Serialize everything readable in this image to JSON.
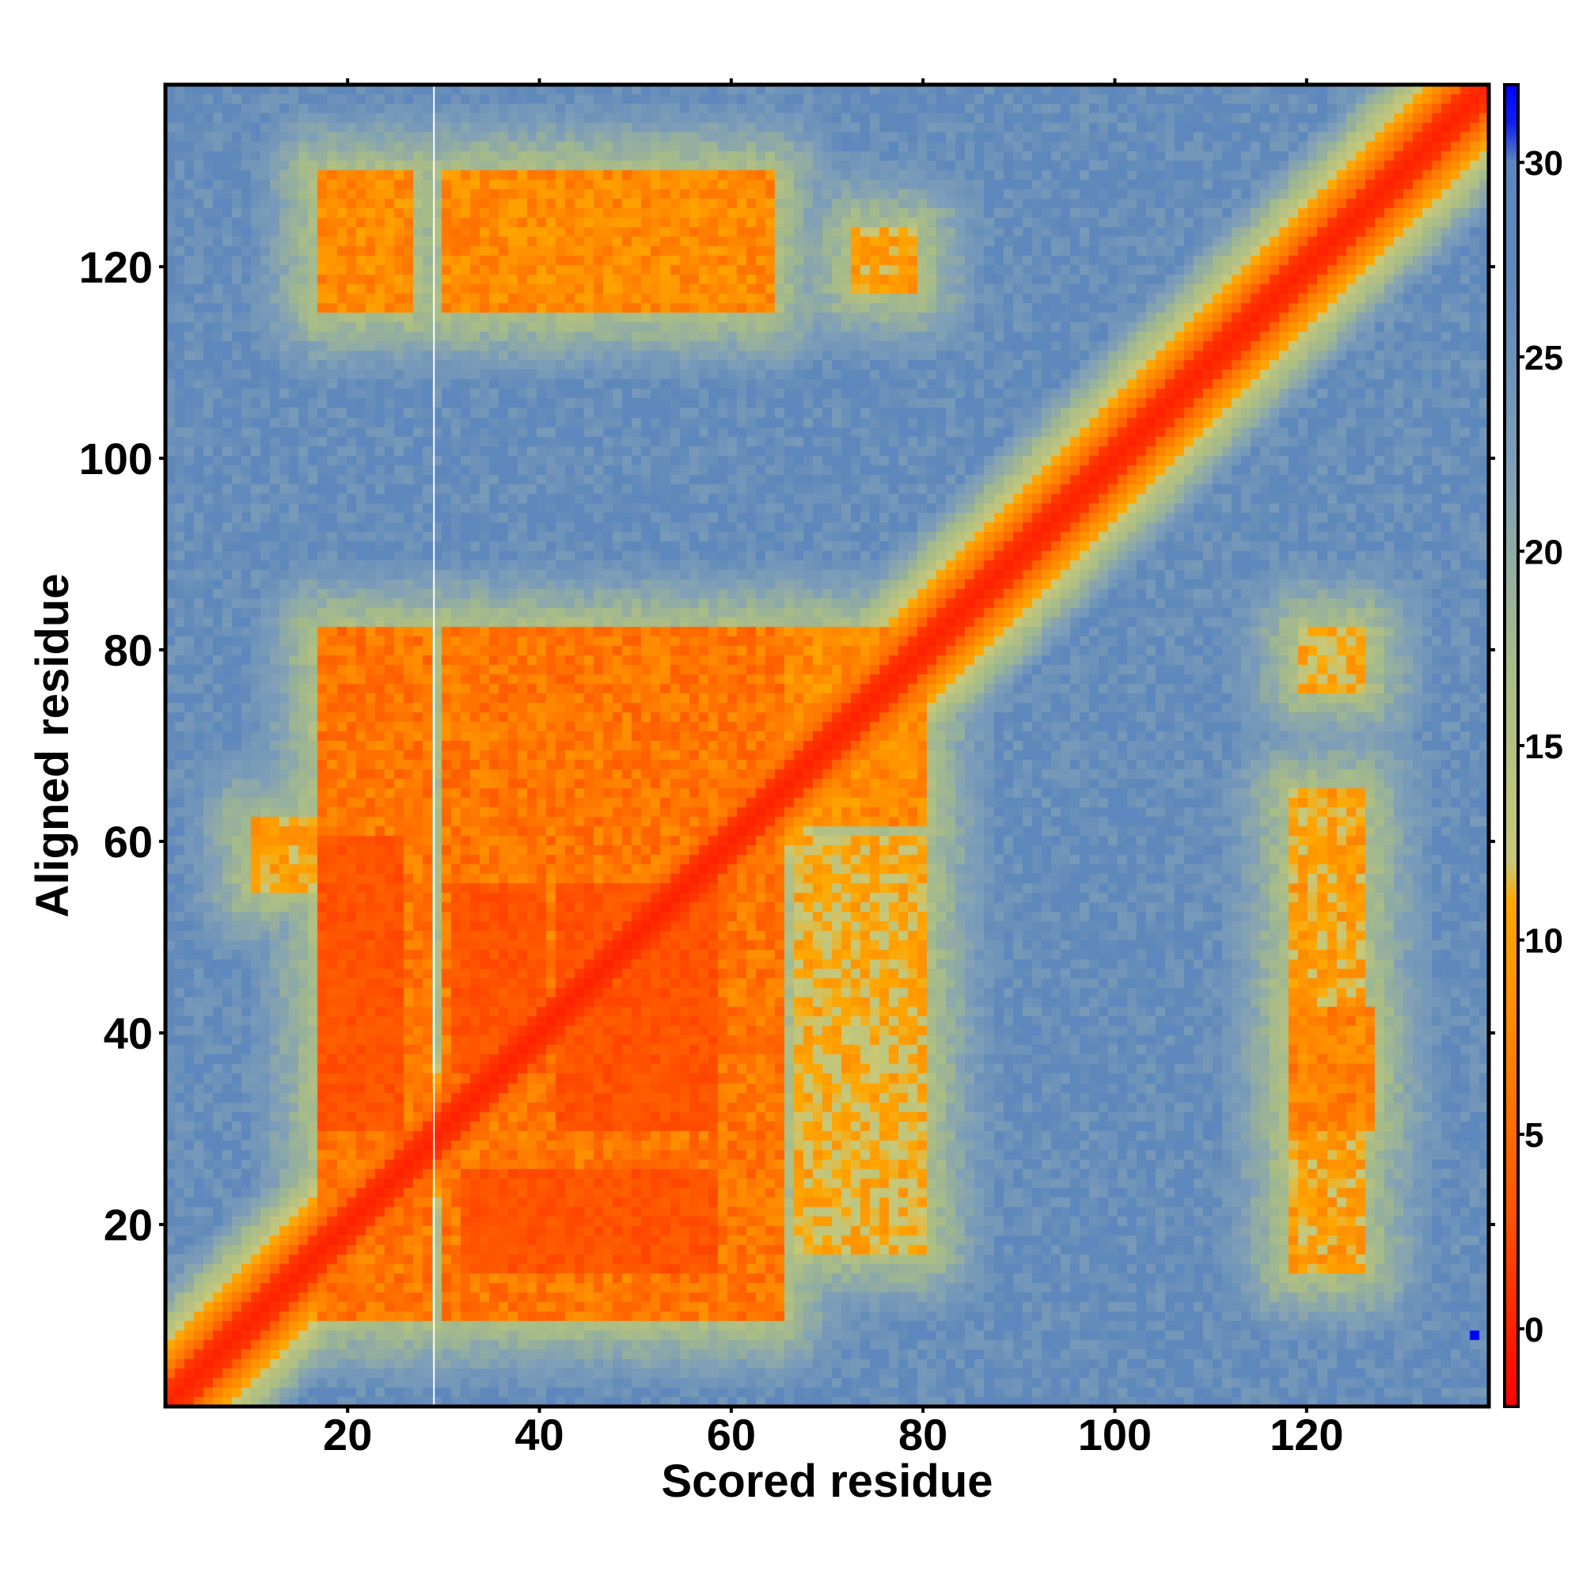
{
  "chart_data": {
    "type": "heatmap",
    "title": "",
    "xlabel": "Scored residue",
    "ylabel": "Aligned residue",
    "xlim": [
      1,
      139
    ],
    "ylim": [
      1,
      139
    ],
    "x_ticks": [
      20,
      40,
      60,
      80,
      100,
      120
    ],
    "y_ticks": [
      20,
      40,
      60,
      80,
      100,
      120
    ],
    "colorbar": {
      "range": [
        -2,
        32
      ],
      "ticks": [
        0,
        5,
        10,
        15,
        20,
        25,
        30
      ],
      "stops": [
        {
          "value": -2,
          "color": "#ff0000"
        },
        {
          "value": 3,
          "color": "#ff5500"
        },
        {
          "value": 8,
          "color": "#ff8c00"
        },
        {
          "value": 11,
          "color": "#ffa800"
        },
        {
          "value": 12,
          "color": "#c8c878"
        },
        {
          "value": 17,
          "color": "#a8bc88"
        },
        {
          "value": 22,
          "color": "#7f9fb8"
        },
        {
          "value": 27,
          "color": "#5f88bb"
        },
        {
          "value": 30,
          "color": "#5c87bf"
        },
        {
          "value": 31,
          "color": "#1020f0"
        },
        {
          "value": 32,
          "color": "#0000ff"
        }
      ]
    },
    "background_value": 26,
    "diagonal": {
      "center_value": 0,
      "width_residues": 2.5,
      "edge_value": 11,
      "edge_width_residues": 7
    },
    "blocks": [
      {
        "x": [
          17,
          28
        ],
        "y": [
          10,
          82
        ],
        "value": 5
      },
      {
        "x": [
          30,
          65
        ],
        "y": [
          10,
          82
        ],
        "value": 5
      },
      {
        "x": [
          66,
          80
        ],
        "y": [
          62,
          82
        ],
        "value": 7
      },
      {
        "x": [
          67,
          80
        ],
        "y": [
          17,
          60
        ],
        "value": 10
      },
      {
        "x": [
          10,
          16
        ],
        "y": [
          55,
          62
        ],
        "value": 9
      },
      {
        "x": [
          17,
          26
        ],
        "y": [
          116,
          130
        ],
        "value": 7
      },
      {
        "x": [
          30,
          64
        ],
        "y": [
          116,
          130
        ],
        "value": 7
      },
      {
        "x": [
          73,
          79
        ],
        "y": [
          118,
          124
        ],
        "value": 9
      },
      {
        "x": [
          119,
          126
        ],
        "y": [
          15,
          65
        ],
        "value": 9
      },
      {
        "x": [
          119,
          127
        ],
        "y": [
          30,
          42
        ],
        "value": 6
      },
      {
        "x": [
          120,
          126
        ],
        "y": [
          76,
          82
        ],
        "value": 10
      }
    ],
    "hot_spots": [
      {
        "x": [
          17,
          25
        ],
        "y": [
          30,
          60
        ],
        "value": 2
      },
      {
        "x": [
          31,
          40
        ],
        "y": [
          36,
          55
        ],
        "value": 2
      },
      {
        "x": [
          42,
          58
        ],
        "y": [
          30,
          55
        ],
        "value": 2
      },
      {
        "x": [
          32,
          58
        ],
        "y": [
          15,
          25
        ],
        "value": 2
      }
    ],
    "outlier": {
      "x": 138,
      "y": 8,
      "value": 32
    },
    "gap_column": 29
  }
}
